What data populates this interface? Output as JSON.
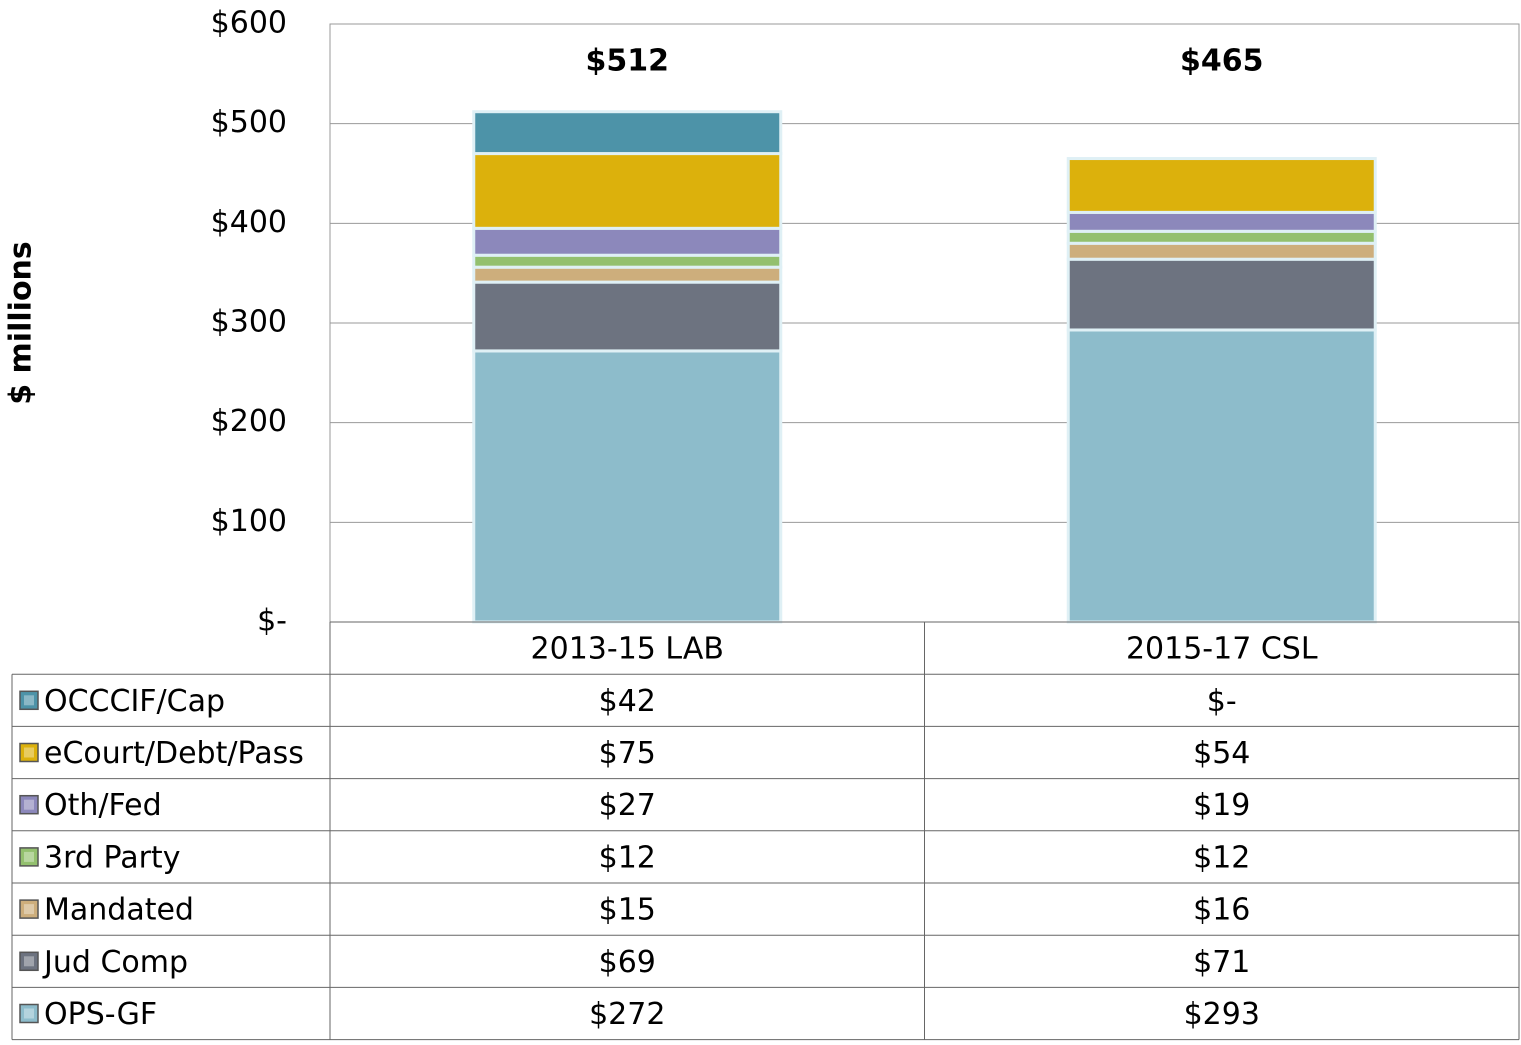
{
  "chart_data": {
    "type": "stacked_bar",
    "ylabel": "$ millions",
    "categories": [
      "2013-15 LAB",
      "2015-17 CSL"
    ],
    "ylim": [
      0,
      600
    ],
    "yticks": [
      {
        "value": 0,
        "label": "$-"
      },
      {
        "value": 100,
        "label": "$100"
      },
      {
        "value": 200,
        "label": "$200"
      },
      {
        "value": 300,
        "label": "$300"
      },
      {
        "value": 400,
        "label": "$400"
      },
      {
        "value": 500,
        "label": "$500"
      },
      {
        "value": 600,
        "label": "$600"
      }
    ],
    "grid": true,
    "totals": [
      512,
      465
    ],
    "total_labels": [
      "$512",
      "$465"
    ],
    "series": [
      {
        "name": "OCCCIF/Cap",
        "color": "#4d93a8",
        "values": [
          42,
          0
        ],
        "value_labels": [
          "$42",
          "$-"
        ]
      },
      {
        "name": "eCourt/Debt/Pass",
        "color": "#dcb10c",
        "values": [
          75,
          54
        ],
        "value_labels": [
          "$75",
          "$54"
        ]
      },
      {
        "name": "Oth/Fed",
        "color": "#8c88bb",
        "values": [
          27,
          19
        ],
        "value_labels": [
          "$27",
          "$19"
        ]
      },
      {
        "name": "3rd Party",
        "color": "#93c06e",
        "values": [
          12,
          12
        ],
        "value_labels": [
          "$12",
          "$12"
        ]
      },
      {
        "name": "Mandated",
        "color": "#cdae7c",
        "values": [
          15,
          16
        ],
        "value_labels": [
          "$15",
          "$16"
        ]
      },
      {
        "name": "Jud Comp",
        "color": "#6d7380",
        "values": [
          69,
          71
        ],
        "value_labels": [
          "$69",
          "$71"
        ]
      },
      {
        "name": "OPS-GF",
        "color": "#8dbccb",
        "values": [
          272,
          293
        ],
        "value_labels": [
          "$272",
          "$293"
        ]
      }
    ]
  }
}
